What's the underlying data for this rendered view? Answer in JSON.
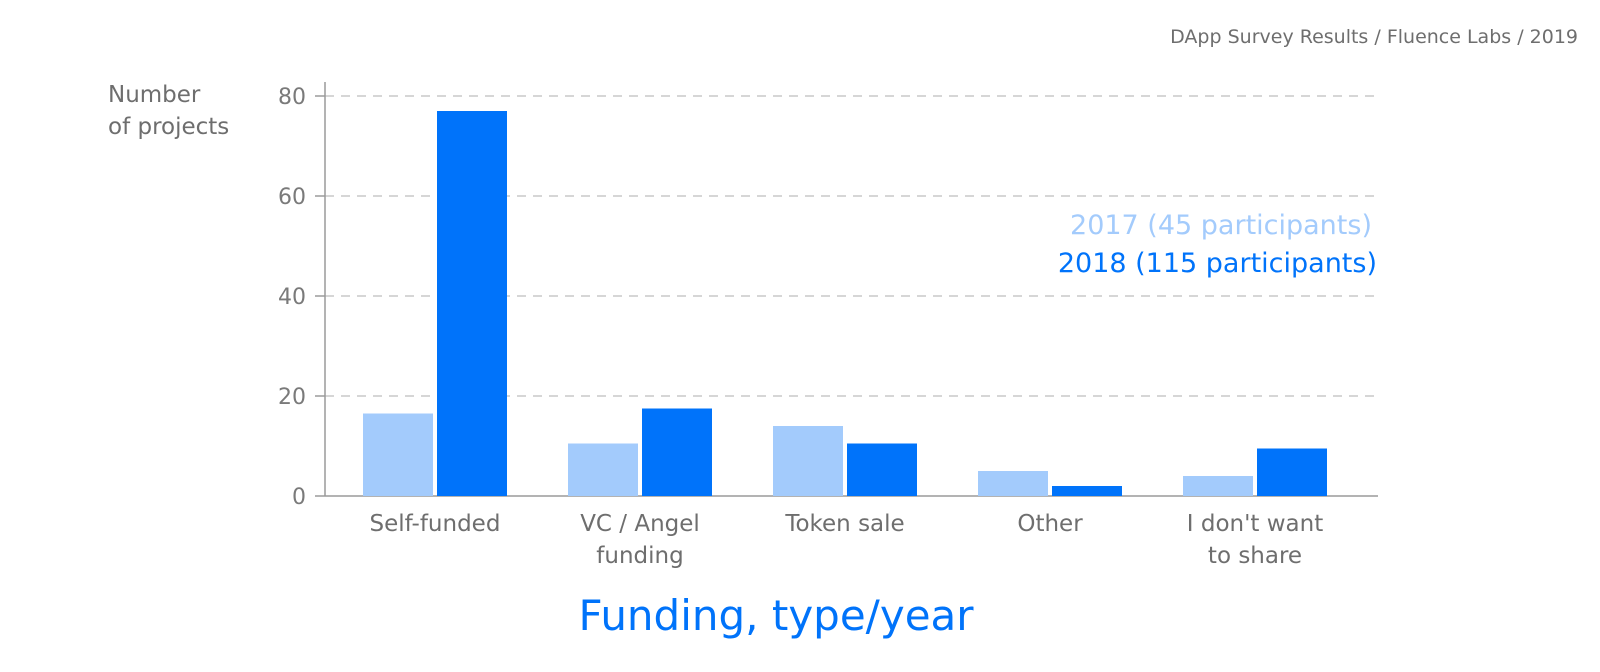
{
  "source_note": "DApp Survey Results / Fluence Labs / 2019",
  "chart_data": {
    "type": "bar",
    "title": "Funding, type/year",
    "ylabel": [
      "Number",
      "of projects"
    ],
    "xlabel": "",
    "ylim": [
      0,
      80
    ],
    "yticks": [
      "0",
      "20",
      "40",
      "60",
      "80"
    ],
    "grid": true,
    "legend_position": "right",
    "categories": [
      [
        "Self-funded"
      ],
      [
        "VC / Angel",
        "funding"
      ],
      [
        "Token sale"
      ],
      [
        "Other"
      ],
      [
        "I don't want",
        "to share"
      ]
    ],
    "series": [
      {
        "name": "2017 (45 participants)",
        "color": "#a3cbfc",
        "values": [
          16.5,
          10.5,
          14,
          5,
          4
        ]
      },
      {
        "name": "2018 (115 participants)",
        "color": "#0073fa",
        "values": [
          77,
          17.5,
          10.5,
          2,
          9.5
        ]
      }
    ],
    "title_color": "#0073fa"
  }
}
